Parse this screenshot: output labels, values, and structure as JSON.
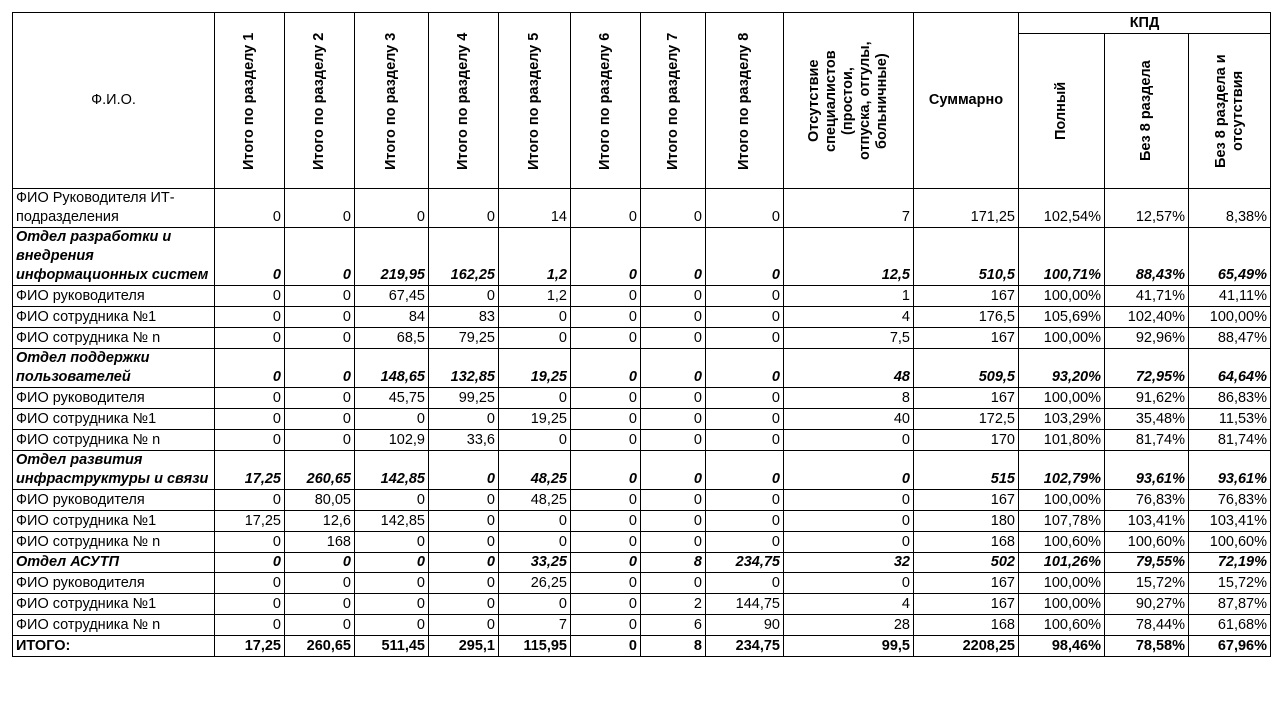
{
  "table": {
    "header": {
      "name": "Ф.И.О.",
      "sections": [
        "Итого по разделу 1",
        "Итого по разделу 2",
        "Итого по разделу 3",
        "Итого по разделу 4",
        "Итого по разделу 5",
        "Итого по разделу 6",
        "Итого по разделу 7",
        "Итого по разделу 8"
      ],
      "absence": "Отсутствие специалистов (простои, отпуска, отгулы, больничные)",
      "sum": "Суммарно",
      "kpd": "КПД",
      "kpd_columns": [
        "Полный",
        "Без 8 раздела",
        "Без 8 раздела и отсутствия"
      ]
    },
    "head_row": {
      "name": "ФИО Руководителя ИТ-подразделения",
      "cells": [
        "0",
        "0",
        "0",
        "0",
        "14",
        "0",
        "0",
        "0",
        "7",
        "171,25",
        "102,54%",
        "12,57%",
        "8,38%"
      ]
    },
    "departments": [
      {
        "name": "Отдел разработки и внедрения информационных систем",
        "cells": [
          "0",
          "0",
          "219,95",
          "162,25",
          "1,2",
          "0",
          "0",
          "0",
          "12,5",
          "510,5",
          "100,71%",
          "88,43%",
          "65,49%"
        ],
        "employees": [
          {
            "name": "ФИО руководителя",
            "cells": [
              "0",
              "0",
              "67,45",
              "0",
              "1,2",
              "0",
              "0",
              "0",
              "1",
              "167",
              "100,00%",
              "41,71%",
              "41,11%"
            ]
          },
          {
            "name": "ФИО сотрудника №1",
            "cells": [
              "0",
              "0",
              "84",
              "83",
              "0",
              "0",
              "0",
              "0",
              "4",
              "176,5",
              "105,69%",
              "102,40%",
              "100,00%"
            ]
          },
          {
            "name": "ФИО сотрудника № n",
            "cells": [
              "0",
              "0",
              "68,5",
              "79,25",
              "0",
              "0",
              "0",
              "0",
              "7,5",
              "167",
              "100,00%",
              "92,96%",
              "88,47%"
            ]
          }
        ]
      },
      {
        "name": "Отдел поддержки пользователей",
        "cells": [
          "0",
          "0",
          "148,65",
          "132,85",
          "19,25",
          "0",
          "0",
          "0",
          "48",
          "509,5",
          "93,20%",
          "72,95%",
          "64,64%"
        ],
        "employees": [
          {
            "name": "ФИО руководителя",
            "cells": [
              "0",
              "0",
              "45,75",
              "99,25",
              "0",
              "0",
              "0",
              "0",
              "8",
              "167",
              "100,00%",
              "91,62%",
              "86,83%"
            ]
          },
          {
            "name": "ФИО сотрудника №1",
            "cells": [
              "0",
              "0",
              "0",
              "0",
              "19,25",
              "0",
              "0",
              "0",
              "40",
              "172,5",
              "103,29%",
              "35,48%",
              "11,53%"
            ]
          },
          {
            "name": "ФИО сотрудника № n",
            "cells": [
              "0",
              "0",
              "102,9",
              "33,6",
              "0",
              "0",
              "0",
              "0",
              "0",
              "170",
              "101,80%",
              "81,74%",
              "81,74%"
            ]
          }
        ]
      },
      {
        "name": "Отдел развития инфраструктуры и связи",
        "cells": [
          "17,25",
          "260,65",
          "142,85",
          "0",
          "48,25",
          "0",
          "0",
          "0",
          "0",
          "515",
          "102,79%",
          "93,61%",
          "93,61%"
        ],
        "employees": [
          {
            "name": "ФИО руководителя",
            "cells": [
              "0",
              "80,05",
              "0",
              "0",
              "48,25",
              "0",
              "0",
              "0",
              "0",
              "167",
              "100,00%",
              "76,83%",
              "76,83%"
            ]
          },
          {
            "name": "ФИО сотрудника №1",
            "cells": [
              "17,25",
              "12,6",
              "142,85",
              "0",
              "0",
              "0",
              "0",
              "0",
              "0",
              "180",
              "107,78%",
              "103,41%",
              "103,41%"
            ]
          },
          {
            "name": "ФИО сотрудника № n",
            "cells": [
              "0",
              "168",
              "0",
              "0",
              "0",
              "0",
              "0",
              "0",
              "0",
              "168",
              "100,60%",
              "100,60%",
              "100,60%"
            ]
          }
        ]
      },
      {
        "name": "Отдел АСУТП",
        "cells": [
          "0",
          "0",
          "0",
          "0",
          "33,25",
          "0",
          "8",
          "234,75",
          "32",
          "502",
          "101,26%",
          "79,55%",
          "72,19%"
        ],
        "employees": [
          {
            "name": "ФИО руководителя",
            "cells": [
              "0",
              "0",
              "0",
              "0",
              "26,25",
              "0",
              "0",
              "0",
              "0",
              "167",
              "100,00%",
              "15,72%",
              "15,72%"
            ]
          },
          {
            "name": "ФИО сотрудника №1",
            "cells": [
              "0",
              "0",
              "0",
              "0",
              "0",
              "0",
              "2",
              "144,75",
              "4",
              "167",
              "100,00%",
              "90,27%",
              "87,87%"
            ]
          },
          {
            "name": "ФИО сотрудника № n",
            "cells": [
              "0",
              "0",
              "0",
              "0",
              "7",
              "0",
              "6",
              "90",
              "28",
              "168",
              "100,60%",
              "78,44%",
              "61,68%"
            ]
          }
        ]
      }
    ],
    "total": {
      "name": "ИТОГО:",
      "cells": [
        "17,25",
        "260,65",
        "511,45",
        "295,1",
        "115,95",
        "0",
        "8",
        "234,75",
        "99,5",
        "2208,25",
        "98,46%",
        "78,58%",
        "67,96%"
      ]
    }
  }
}
